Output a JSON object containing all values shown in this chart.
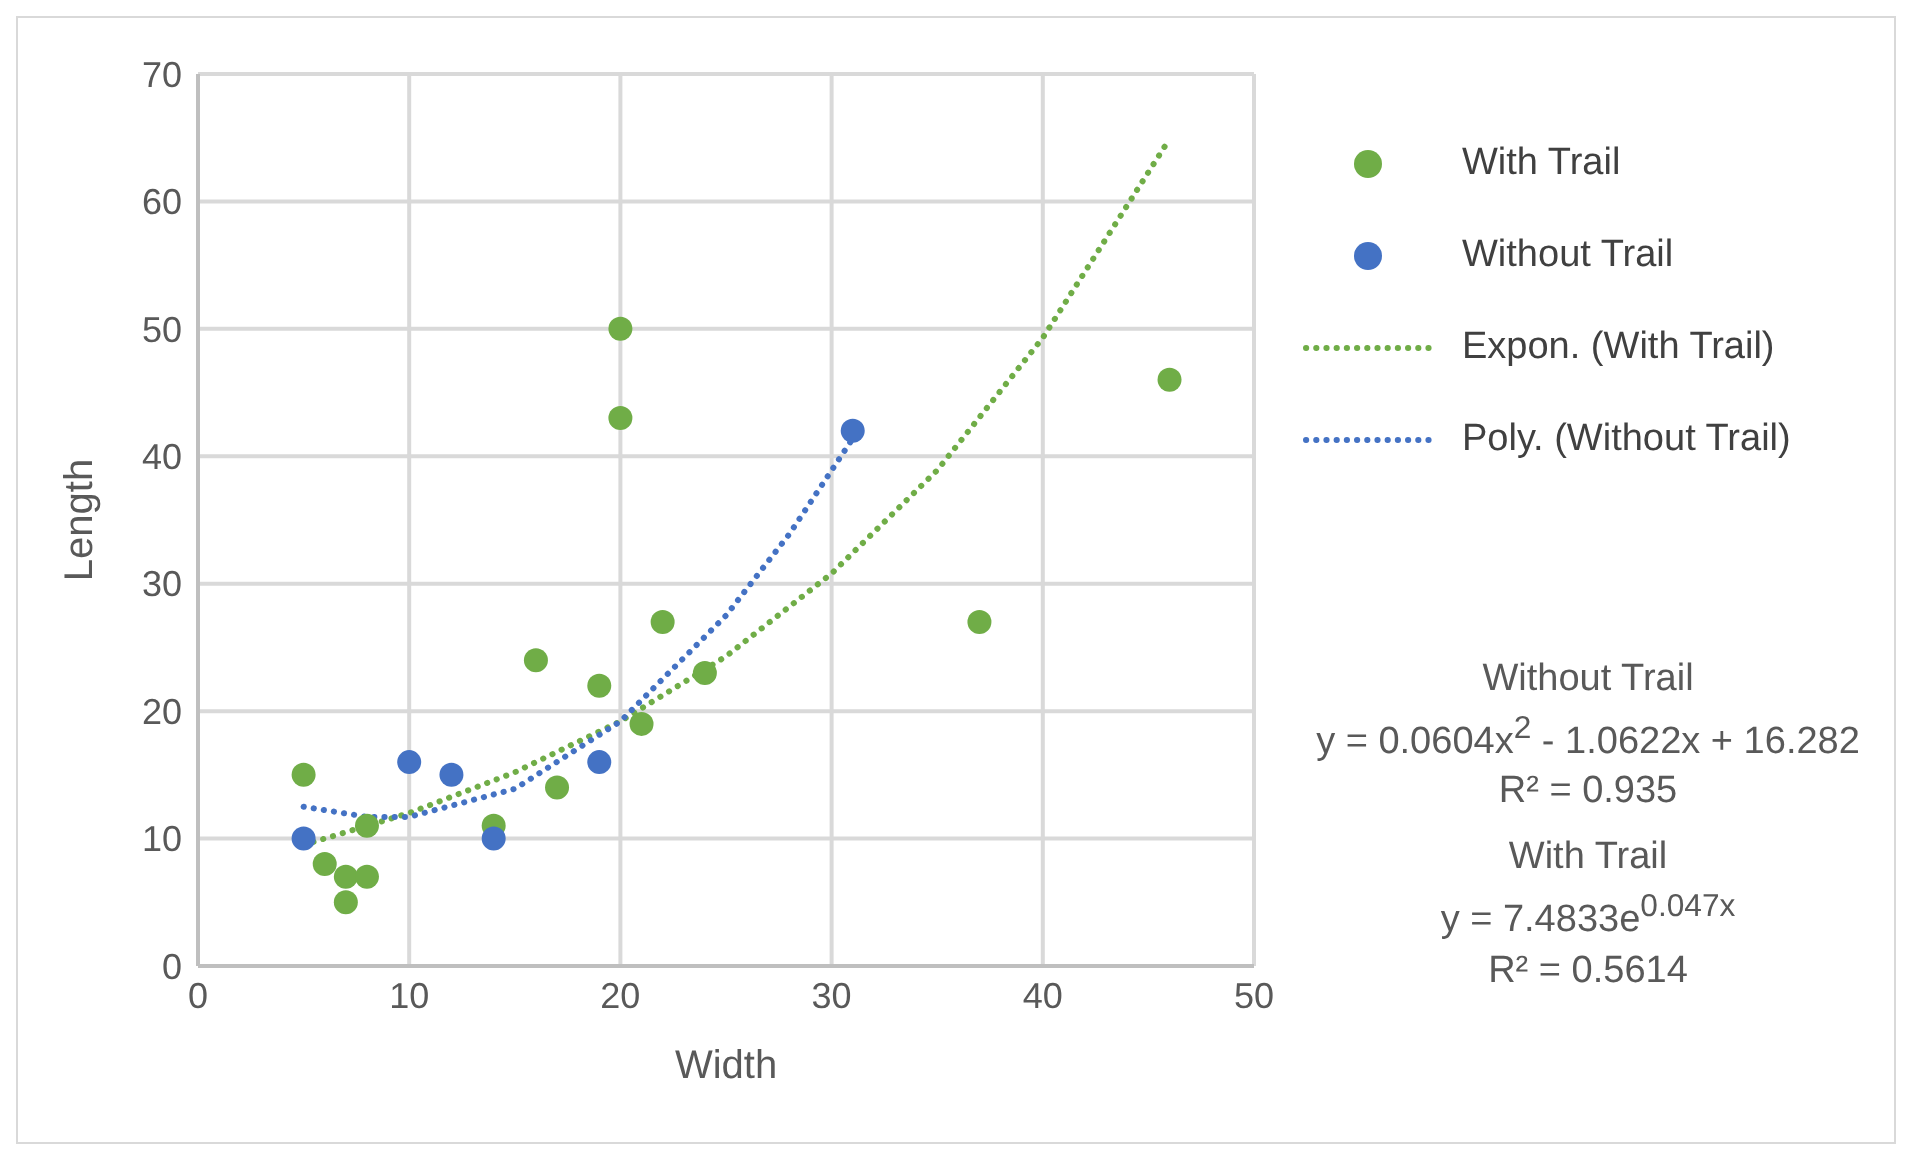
{
  "chart_data": {
    "type": "scatter",
    "xlabel": "Width",
    "ylabel": "Length",
    "xlim": [
      0,
      50
    ],
    "xticks": [
      0,
      10,
      20,
      30,
      40,
      50
    ],
    "ylim": [
      0,
      70
    ],
    "yticks": [
      0,
      10,
      20,
      30,
      40,
      50,
      60,
      70
    ],
    "grid": true,
    "legend": "top right",
    "marker": "circle",
    "series": [
      {
        "name": "With Trail",
        "color": "#70ad47",
        "x": [
          5,
          6,
          7,
          7,
          8,
          8,
          14,
          16,
          17,
          19,
          20,
          20,
          21,
          22,
          24,
          37,
          46
        ],
        "values": [
          15,
          8,
          5,
          7,
          7,
          11,
          11,
          24,
          14,
          22,
          50,
          43,
          19,
          27,
          23,
          27,
          46
        ]
      },
      {
        "name": "Without Trail",
        "color": "#4472c4",
        "x": [
          5,
          10,
          12,
          14,
          19,
          31
        ],
        "values": [
          10,
          16,
          15,
          10,
          16,
          42
        ]
      },
      {
        "name": "Expon. (With Trail)",
        "type": "line",
        "line_style": "dotted",
        "marker": "none",
        "color": "#70ad47",
        "x": [
          5,
          10,
          15,
          20,
          25,
          30,
          35,
          40,
          46
        ],
        "values": [
          9.5,
          12,
          15.2,
          19.2,
          24.3,
          30.8,
          38.9,
          49.3,
          64.9
        ]
      },
      {
        "name": "Poly. (Without Trail)",
        "type": "line",
        "line_style": "dotted",
        "marker": "none",
        "color": "#4472c4",
        "x": [
          5,
          8,
          10,
          15,
          20,
          25,
          28,
          31
        ],
        "values": [
          12.5,
          11.7,
          11.7,
          13.9,
          19.2,
          27.5,
          33.9,
          41.4
        ]
      }
    ],
    "annotations": [
      "Without Trail",
      "y = 0.0604x$^{2}$ - 1.0622x + 16.282",
      "R² = 0.935",
      "With Trail",
      "y = 7.4833e$^{0.047x}$",
      "R² = 0.5614"
    ]
  }
}
